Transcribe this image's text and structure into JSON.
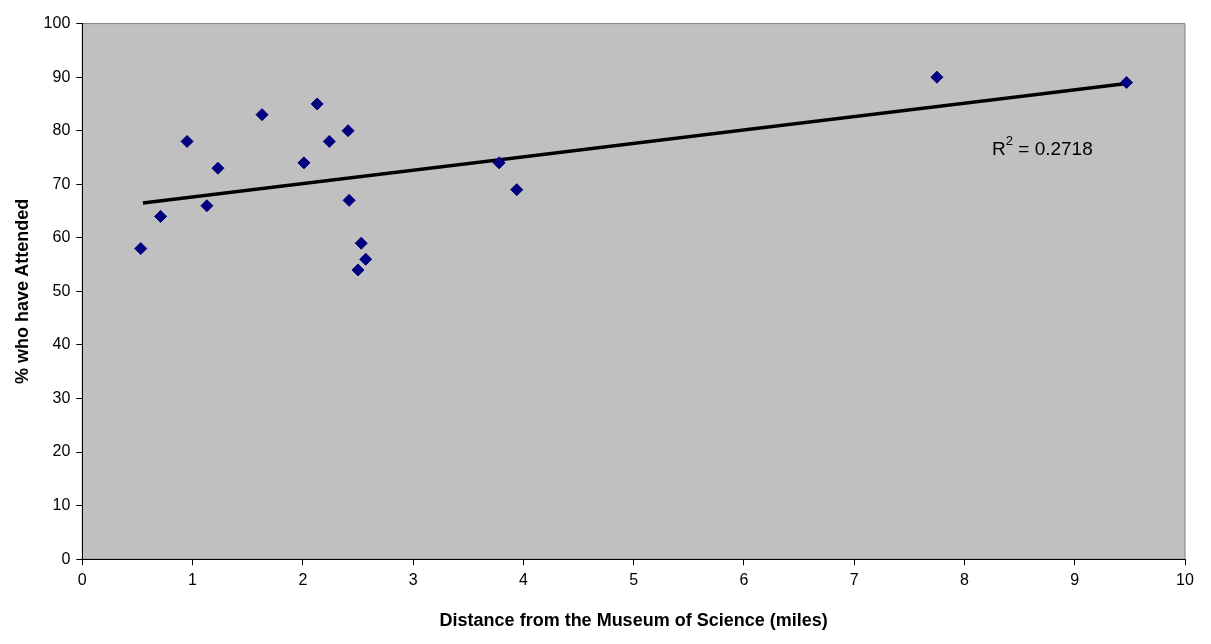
{
  "chart_data": {
    "type": "scatter",
    "xlabel": "Distance from the Museum of Science (miles)",
    "ylabel": "% who have Attended",
    "xlim": [
      0,
      10
    ],
    "xticks": [
      0,
      1,
      2,
      3,
      4,
      5,
      6,
      7,
      8,
      9,
      10
    ],
    "ylim": [
      0,
      100
    ],
    "yticks": [
      0,
      10,
      20,
      30,
      40,
      50,
      60,
      70,
      80,
      90,
      100
    ],
    "grid": false,
    "legend": false,
    "series": [
      {
        "type": "scatter",
        "marker": "diamond",
        "color": "#000080",
        "x": [
          0.53,
          0.71,
          0.95,
          1.13,
          1.23,
          1.63,
          2.01,
          2.13,
          2.24,
          2.41,
          2.42,
          2.5,
          2.53,
          2.57,
          3.78,
          3.94,
          7.75,
          9.47
        ],
        "values": [
          58,
          64,
          78,
          66,
          73,
          83,
          74,
          85,
          78,
          80,
          67,
          54,
          59,
          56,
          74,
          69,
          90,
          89
        ]
      },
      {
        "type": "line",
        "marker": "none",
        "color": "#000000",
        "x": [
          0.55,
          9.47
        ],
        "values": [
          66.5,
          88.8
        ]
      }
    ],
    "annotations": [
      "R$^{2}$ = 0.2718"
    ]
  }
}
